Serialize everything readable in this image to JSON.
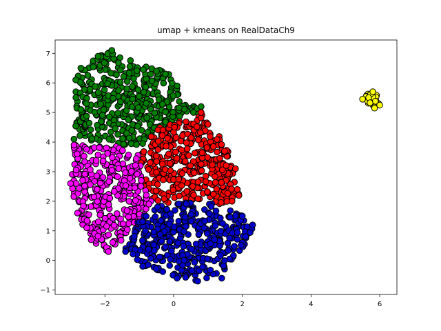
{
  "chart_data": {
    "type": "scatter",
    "title": "umap + kmeans on RealDataCh9",
    "xlabel": "",
    "ylabel": "",
    "xlim": [
      -3.45,
      6.5
    ],
    "ylim": [
      -1.15,
      7.45
    ],
    "xticks": [
      -2,
      0,
      2,
      4,
      6
    ],
    "yticks": [
      -1,
      0,
      1,
      2,
      3,
      4,
      5,
      6,
      7
    ],
    "grid": false,
    "legend": "none",
    "marker_edge_color": "#000000",
    "clusters": [
      {
        "color": "#008000",
        "count": 420,
        "polygon": [
          [
            -2.9,
            4.1
          ],
          [
            -2.9,
            5.9
          ],
          [
            -2.7,
            6.5
          ],
          [
            -2.2,
            6.9
          ],
          [
            -1.8,
            7.1
          ],
          [
            -1.0,
            6.6
          ],
          [
            -0.2,
            6.4
          ],
          [
            0.1,
            5.9
          ],
          [
            0.2,
            5.3
          ],
          [
            0.8,
            5.2
          ],
          [
            0.9,
            5.0
          ],
          [
            -0.4,
            4.5
          ],
          [
            -0.9,
            3.9
          ],
          [
            -1.7,
            3.9
          ],
          [
            -2.2,
            4.0
          ]
        ],
        "points": [
          [
            -2.2,
            6.9
          ],
          [
            -1.8,
            7.1
          ],
          [
            -2.7,
            6.5
          ],
          [
            -2.85,
            6.1
          ],
          [
            -0.5,
            6.4
          ],
          [
            0.1,
            5.9
          ],
          [
            0.8,
            5.2
          ],
          [
            -2.9,
            4.1
          ],
          [
            -0.9,
            3.95
          ],
          [
            -2.7,
            5.1
          ]
        ]
      },
      {
        "color": "#ff0000",
        "count": 380,
        "polygon": [
          [
            -0.9,
            3.9
          ],
          [
            -0.4,
            4.5
          ],
          [
            0.2,
            4.7
          ],
          [
            0.8,
            5.0
          ],
          [
            1.0,
            4.6
          ],
          [
            1.5,
            4.0
          ],
          [
            1.8,
            3.1
          ],
          [
            1.9,
            2.2
          ],
          [
            1.5,
            1.9
          ],
          [
            0.5,
            2.0
          ],
          [
            -0.5,
            1.9
          ],
          [
            -0.9,
            2.5
          ],
          [
            -1.0,
            3.3
          ]
        ],
        "points": [
          [
            0.8,
            5.0
          ],
          [
            1.0,
            4.6
          ],
          [
            1.8,
            3.1
          ],
          [
            1.9,
            2.2
          ],
          [
            1.7,
            2.0
          ],
          [
            -0.95,
            3.3
          ]
        ]
      },
      {
        "color": "#ff00ff",
        "count": 360,
        "polygon": [
          [
            -3.0,
            2.6
          ],
          [
            -2.9,
            3.9
          ],
          [
            -2.3,
            3.9
          ],
          [
            -1.7,
            3.9
          ],
          [
            -1.0,
            3.6
          ],
          [
            -0.9,
            2.5
          ],
          [
            -0.5,
            1.9
          ],
          [
            -0.9,
            1.4
          ],
          [
            -1.4,
            0.8
          ],
          [
            -1.9,
            0.3
          ],
          [
            -2.3,
            0.6
          ],
          [
            -2.7,
            1.3
          ],
          [
            -2.9,
            1.9
          ]
        ],
        "points": [
          [
            -3.0,
            2.6
          ],
          [
            -2.9,
            3.9
          ],
          [
            -1.9,
            0.3
          ],
          [
            -2.4,
            0.7
          ],
          [
            -2.8,
            1.6
          ]
        ]
      },
      {
        "color": "#0000cd",
        "count": 400,
        "polygon": [
          [
            -1.4,
            0.4
          ],
          [
            -1.0,
            1.4
          ],
          [
            -0.5,
            1.9
          ],
          [
            0.5,
            2.0
          ],
          [
            1.5,
            1.9
          ],
          [
            2.0,
            1.5
          ],
          [
            2.3,
            1.1
          ],
          [
            2.1,
            0.6
          ],
          [
            1.8,
            0.1
          ],
          [
            1.4,
            -0.4
          ],
          [
            0.8,
            -0.7
          ],
          [
            0.1,
            -0.6
          ],
          [
            -0.6,
            -0.3
          ],
          [
            -1.2,
            0.0
          ]
        ],
        "points": [
          [
            2.3,
            1.2
          ],
          [
            0.7,
            -0.7
          ],
          [
            0.1,
            -0.6
          ],
          [
            1.4,
            -0.6
          ],
          [
            -1.4,
            0.3
          ],
          [
            -0.9,
            -0.2
          ],
          [
            2.0,
            1.5
          ]
        ]
      },
      {
        "color": "#ffff00",
        "count": 30,
        "polygon": [
          [
            5.5,
            5.45
          ],
          [
            5.6,
            5.6
          ],
          [
            5.8,
            5.7
          ],
          [
            5.95,
            5.6
          ],
          [
            6.0,
            5.3
          ],
          [
            5.85,
            5.15
          ],
          [
            5.65,
            5.3
          ]
        ],
        "points": [
          [
            5.5,
            5.45
          ],
          [
            5.85,
            5.15
          ],
          [
            6.0,
            5.25
          ],
          [
            5.8,
            5.7
          ]
        ]
      }
    ]
  }
}
